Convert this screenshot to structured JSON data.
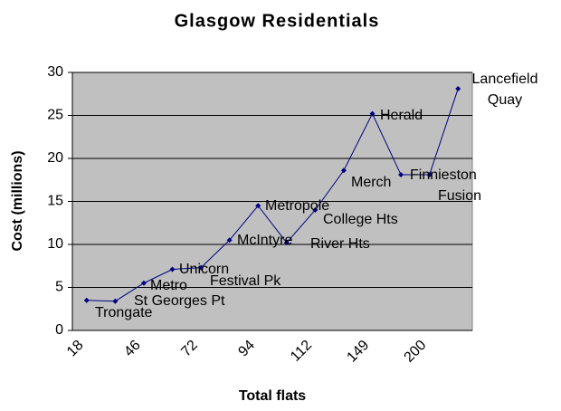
{
  "chart_data": {
    "type": "line",
    "title": "Glasgow Residentials",
    "x_label": "Total flats",
    "y_label": "Cost (millions)",
    "categories": [
      "18",
      null,
      "46",
      null,
      "72",
      null,
      "94",
      null,
      "112",
      null,
      "149",
      null,
      "200",
      null
    ],
    "values": [
      3.5,
      3.4,
      5.5,
      7.1,
      7.3,
      10.5,
      14.5,
      10.2,
      14,
      18.6,
      25.2,
      18.1,
      18.1,
      28.1
    ],
    "point_labels": [
      "Trongate",
      "St Georges Pt",
      "Metro",
      "Unicorn",
      "Festival Pk",
      "McIntyre",
      "Metropole",
      "River Hts",
      "College Hts",
      "Merch",
      "Herald",
      "Finnieston",
      "Fusion",
      "Lancefield Quay"
    ],
    "color": "#000080",
    "background": "#c0c0c0",
    "ylim": [
      0,
      30
    ],
    "yticks": [
      0,
      5,
      10,
      15,
      20,
      25,
      30
    ],
    "grid": true
  }
}
